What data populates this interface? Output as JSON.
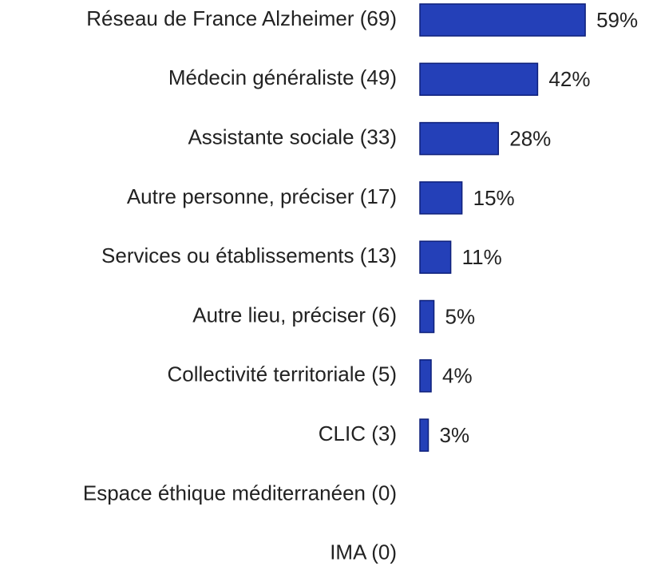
{
  "chart_data": {
    "type": "bar",
    "orientation": "horizontal",
    "categories": [
      "Réseau de France Alzheimer (69)",
      "Médecin généraliste (49)",
      "Assistante sociale (33)",
      "Autre personne, préciser (17)",
      "Services ou établissements (13)",
      "Autre lieu, préciser (6)",
      "Collectivité territoriale (5)",
      "CLIC (3)",
      "Espace éthique méditerranéen (0)",
      "IMA (0)"
    ],
    "values": [
      59,
      42,
      28,
      15,
      11,
      5,
      4,
      3,
      0,
      0
    ],
    "value_labels": [
      "59%",
      "42%",
      "28%",
      "15%",
      "11%",
      "5%",
      "4%",
      "3%",
      null,
      null
    ],
    "color": "#2440b8"
  }
}
